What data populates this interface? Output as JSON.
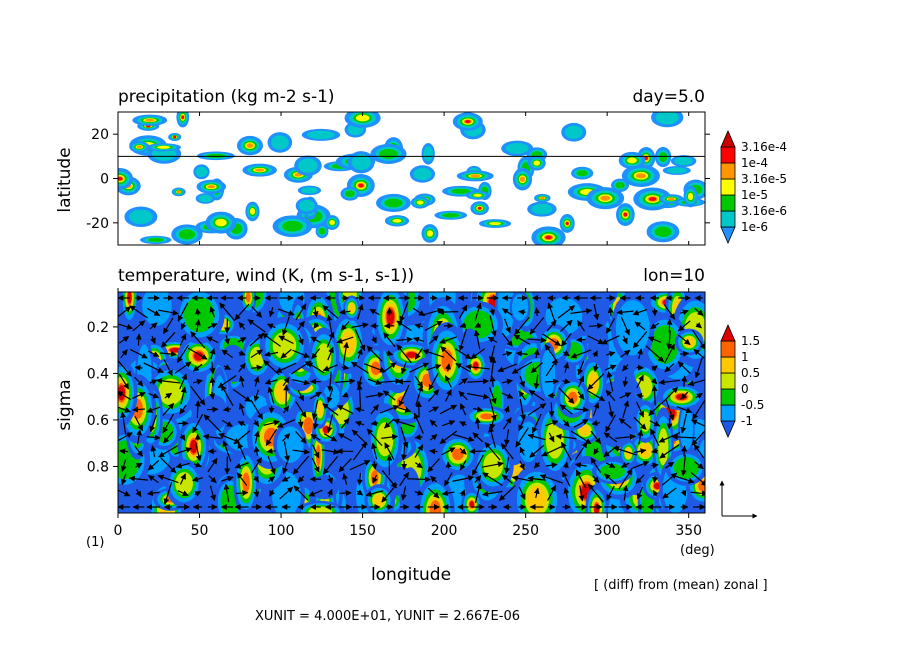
{
  "chart_data": [
    {
      "type": "heatmap",
      "panel": "top",
      "title": "precipitation (kg m-2 s-1)",
      "title_right": "day=5.0",
      "ylabel": "latitude",
      "xlim": [
        0,
        360
      ],
      "ylim": [
        -30,
        30
      ],
      "yticks": [
        -20,
        0,
        20
      ],
      "reference_line_lat": 10,
      "colorbar": {
        "labels": [
          "3.16e-4",
          "1e-4",
          "3.16e-5",
          "1e-5",
          "3.16e-6",
          "1e-6"
        ],
        "colors": [
          "#1e90ff",
          "#00c8c8",
          "#00c800",
          "#ffff00",
          "#ff9600",
          "#ff0000",
          "#c80000"
        ]
      }
    },
    {
      "type": "heatmap",
      "panel": "bottom",
      "title": "temperature, wind (K, (m s-1, s-1))",
      "title_right": "lon=10",
      "xlabel": "longitude",
      "ylabel": "sigma",
      "xlim": [
        0,
        360
      ],
      "ylim": [
        1.0,
        0.05
      ],
      "xticks": [
        0,
        50,
        100,
        150,
        200,
        250,
        300,
        350
      ],
      "yticks": [
        0.2,
        0.4,
        0.6,
        0.8
      ],
      "colorbar": {
        "labels": [
          "1.5",
          "1",
          "0.5",
          "0",
          "-0.5",
          "-1"
        ],
        "colors": [
          "#1e5ae6",
          "#00a0ff",
          "#00c800",
          "#c8e600",
          "#ffc800",
          "#ff6400",
          "#dc0000"
        ]
      }
    }
  ],
  "labels": {
    "corner_label": "(1)",
    "unit_label": "(deg)",
    "note": "[ (diff) from (mean) zonal ]",
    "units_line": "XUNIT = 4.000E+01, YUNIT = 2.667E-06"
  }
}
